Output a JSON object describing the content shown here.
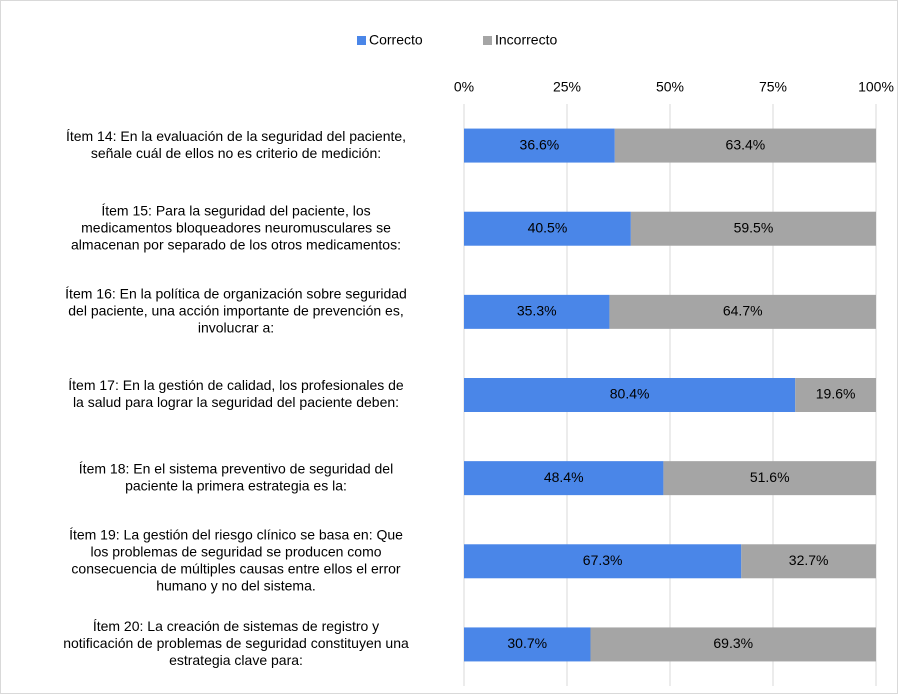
{
  "chart_data": {
    "type": "stacked-bar-horizontal",
    "categories": [
      [
        "Ítem 14: En la evaluación de la seguridad del paciente,",
        "señale cuál de ellos no es criterio de medición:"
      ],
      [
        "Ítem 15: Para la seguridad del paciente, los",
        "medicamentos bloqueadores neuromusculares se",
        "almacenan por separado de los otros medicamentos:"
      ],
      [
        "Ítem 16: En la política de organización sobre seguridad",
        "del paciente, una acción importante de prevención es,",
        "involucrar a:"
      ],
      [
        "Ítem 17: En la gestión de calidad, los profesionales de",
        "la salud para lograr la seguridad del paciente deben:"
      ],
      [
        "Ítem 18: En el sistema preventivo de seguridad del",
        "paciente la primera estrategia es la:"
      ],
      [
        "Ítem 19: La gestión del riesgo clínico se basa en: Que",
        "los problemas de seguridad se producen como",
        "consecuencia de múltiples causas entre ellos el error",
        "humano y no del sistema."
      ],
      [
        "Ítem 20: La creación de sistemas de registro y",
        "notificación de problemas de seguridad constituyen una",
        "estrategia clave para:"
      ]
    ],
    "series": [
      {
        "name": "Correcto",
        "color": "#4a86e8",
        "values": [
          36.6,
          40.5,
          35.3,
          80.4,
          48.4,
          67.3,
          30.7
        ],
        "value_labels": [
          "36.6%",
          "40.5%",
          "35.3%",
          "80.4%",
          "48.4%",
          "67.3%",
          "30.7%"
        ]
      },
      {
        "name": "Incorrecto",
        "color": "#a5a5a5",
        "values": [
          63.4,
          59.5,
          64.7,
          19.6,
          51.6,
          32.7,
          69.3
        ],
        "value_labels": [
          "63.4%",
          "59.5%",
          "64.7%",
          "19.6%",
          "51.6%",
          "32.7%",
          "69.3%"
        ]
      }
    ],
    "xlim": [
      0,
      100
    ],
    "xticks": [
      {
        "value": 0,
        "label": "0%"
      },
      {
        "value": 25,
        "label": "25%"
      },
      {
        "value": 50,
        "label": "50%"
      },
      {
        "value": 75,
        "label": "75%"
      },
      {
        "value": 100,
        "label": "100%"
      }
    ],
    "grid": true,
    "legend": "top"
  }
}
